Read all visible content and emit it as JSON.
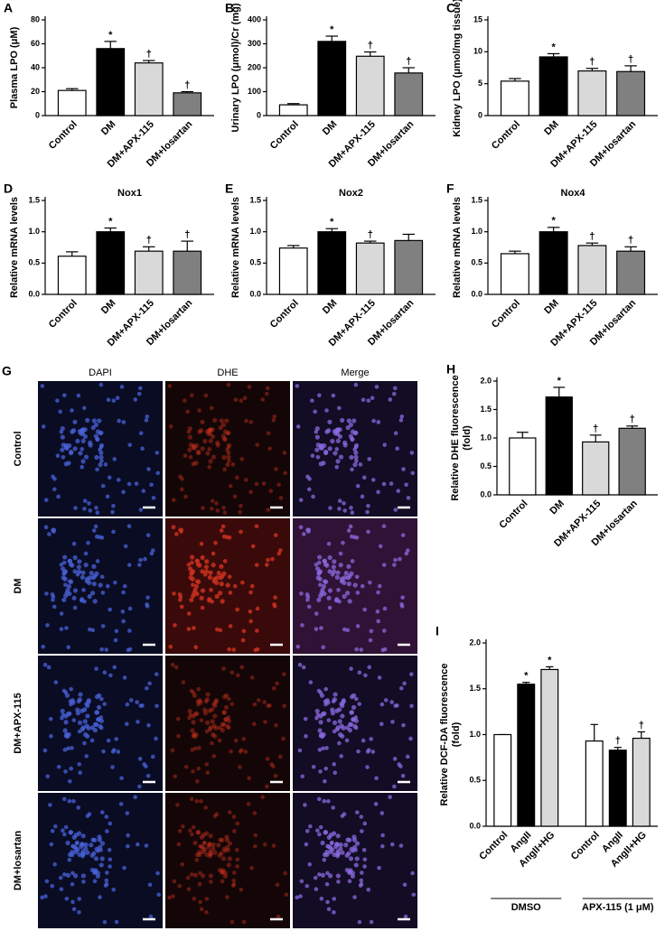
{
  "chart_data": [
    {
      "type": "bar",
      "panel": "A",
      "ylabel": "Plasma LPO (μM)",
      "categories": [
        "Control",
        "DM",
        "DM+APX-115",
        "DM+losartan"
      ],
      "values": [
        21,
        56,
        44,
        19
      ],
      "errors": [
        1.5,
        6,
        2,
        1
      ],
      "value_annotations": [
        null,
        "*",
        "†",
        "†"
      ],
      "colors": [
        "#ffffff",
        "#000000",
        "#d9d9d9",
        "#808080"
      ],
      "ylim": [
        0,
        80
      ],
      "yticks": [
        0,
        20,
        40,
        60,
        80
      ]
    },
    {
      "type": "bar",
      "panel": "B",
      "ylabel": "Urinary LPO (μmol)/Cr (mg)",
      "categories": [
        "Control",
        "DM",
        "DM+APX-115",
        "DM+losartan"
      ],
      "values": [
        45,
        310,
        248,
        178
      ],
      "errors": [
        5,
        22,
        18,
        22
      ],
      "value_annotations": [
        null,
        "*",
        "†",
        "†"
      ],
      "colors": [
        "#ffffff",
        "#000000",
        "#d9d9d9",
        "#808080"
      ],
      "ylim": [
        0,
        400
      ],
      "yticks": [
        0,
        100,
        200,
        300,
        400
      ]
    },
    {
      "type": "bar",
      "panel": "C",
      "ylabel": "Kidney LPO (μmol/mg tissue)",
      "categories": [
        "Control",
        "DM",
        "DM+APX-115",
        "DM+losartan"
      ],
      "values": [
        5.4,
        9.2,
        7.0,
        6.9
      ],
      "errors": [
        0.4,
        0.5,
        0.4,
        0.9
      ],
      "value_annotations": [
        null,
        "*",
        "†",
        "†"
      ],
      "colors": [
        "#ffffff",
        "#000000",
        "#d9d9d9",
        "#808080"
      ],
      "ylim": [
        0,
        15
      ],
      "yticks": [
        0,
        5,
        10,
        15
      ]
    },
    {
      "type": "bar",
      "panel": "D",
      "title": "Nox1",
      "ylabel": "Relative mRNA levels",
      "categories": [
        "Control",
        "DM",
        "DM+APX-115",
        "DM+losartan"
      ],
      "values": [
        0.61,
        1.0,
        0.69,
        0.69
      ],
      "errors": [
        0.07,
        0.06,
        0.07,
        0.16
      ],
      "value_annotations": [
        null,
        "*",
        "†",
        "†"
      ],
      "colors": [
        "#ffffff",
        "#000000",
        "#d9d9d9",
        "#808080"
      ],
      "ylim": [
        0,
        1.5
      ],
      "yticks": [
        {
          "value": 0,
          "label": "0.0"
        },
        {
          "value": 0.5,
          "label": "0.5"
        },
        {
          "value": 1,
          "label": "1.0"
        },
        {
          "value": 1.5,
          "label": "1.5"
        }
      ]
    },
    {
      "type": "bar",
      "panel": "E",
      "title": "Nox2",
      "ylabel": "Relative mRNA levels",
      "categories": [
        "Control",
        "DM",
        "DM+APX-115",
        "DM+losartan"
      ],
      "values": [
        0.74,
        1.0,
        0.82,
        0.86
      ],
      "errors": [
        0.04,
        0.05,
        0.03,
        0.1
      ],
      "value_annotations": [
        null,
        "*",
        "†",
        null
      ],
      "colors": [
        "#ffffff",
        "#000000",
        "#d9d9d9",
        "#808080"
      ],
      "ylim": [
        0,
        1.5
      ],
      "yticks": [
        {
          "value": 0,
          "label": "0.0"
        },
        {
          "value": 0.5,
          "label": "0.5"
        },
        {
          "value": 1,
          "label": "1.0"
        },
        {
          "value": 1.5,
          "label": "1.5"
        }
      ]
    },
    {
      "type": "bar",
      "panel": "F",
      "title": "Nox4",
      "ylabel": "Relative mRNA levels",
      "categories": [
        "Control",
        "DM",
        "DM+APX-115",
        "DM+losartan"
      ],
      "values": [
        0.65,
        1.0,
        0.78,
        0.69
      ],
      "errors": [
        0.04,
        0.07,
        0.04,
        0.07
      ],
      "value_annotations": [
        null,
        "*",
        "†",
        "†"
      ],
      "colors": [
        "#ffffff",
        "#000000",
        "#d9d9d9",
        "#808080"
      ],
      "ylim": [
        0,
        1.5
      ],
      "yticks": [
        {
          "value": 0,
          "label": "0.0"
        },
        {
          "value": 0.5,
          "label": "0.5"
        },
        {
          "value": 1,
          "label": "1.0"
        },
        {
          "value": 1.5,
          "label": "1.5"
        }
      ]
    },
    {
      "type": "bar",
      "panel": "H",
      "ylabel": [
        "Relative DHE fluorescence",
        "(fold)"
      ],
      "categories": [
        "Control",
        "DM",
        "DM+APX-115",
        "DM+losartan"
      ],
      "values": [
        1.0,
        1.72,
        0.93,
        1.17
      ],
      "errors": [
        0.1,
        0.17,
        0.12,
        0.04
      ],
      "value_annotations": [
        null,
        "*",
        "†",
        "†"
      ],
      "colors": [
        "#ffffff",
        "#000000",
        "#d9d9d9",
        "#808080"
      ],
      "ylim": [
        0,
        2
      ],
      "yticks": [
        {
          "value": 0,
          "label": "0.0"
        },
        {
          "value": 0.5,
          "label": "0.5"
        },
        {
          "value": 1,
          "label": "1.0"
        },
        {
          "value": 1.5,
          "label": "1.5"
        },
        {
          "value": 2,
          "label": "2.0"
        }
      ]
    },
    {
      "type": "bar",
      "panel": "I",
      "ylabel": [
        "Relative DCF-DA fluorescence",
        "(fold)"
      ],
      "categories": [
        "Control",
        "AngII",
        "AngII+HG",
        "Control",
        "AngII",
        "AngII+HG"
      ],
      "groups": [
        "DMSO",
        "APX-115 (1 μM)"
      ],
      "values": [
        1.0,
        1.55,
        1.71,
        0.93,
        0.83,
        0.96
      ],
      "errors": [
        0,
        0.02,
        0.03,
        0.18,
        0.03,
        0.07
      ],
      "value_annotations": [
        null,
        "*",
        "*",
        null,
        "†",
        "†"
      ],
      "colors": [
        "#ffffff",
        "#000000",
        "#d9d9d9",
        "#ffffff",
        "#000000",
        "#d9d9d9"
      ],
      "ylim": [
        0,
        2
      ],
      "yticks": [
        {
          "value": 0,
          "label": "0.0"
        },
        {
          "value": 0.5,
          "label": "0.5"
        },
        {
          "value": 1,
          "label": "1.0"
        },
        {
          "value": 1.5,
          "label": "1.5"
        },
        {
          "value": 2,
          "label": "2.0"
        }
      ]
    }
  ],
  "image_panel": {
    "panel": "G",
    "columns": [
      "DAPI",
      "DHE",
      "Merge"
    ],
    "rows": [
      "Control",
      "DM",
      "DM+APX-115",
      "DM+losartan"
    ]
  }
}
